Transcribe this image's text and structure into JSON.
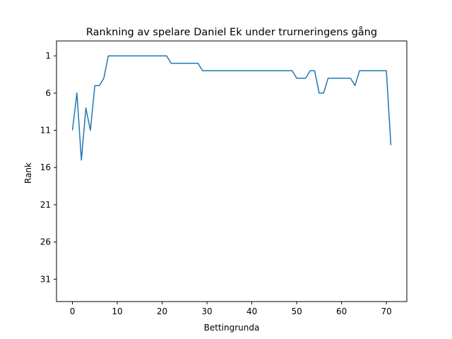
{
  "chart_data": {
    "type": "line",
    "title": "Rankning av spelare Daniel Ek under trurneringens gång",
    "xlabel": "Bettingrunda",
    "ylabel": "Rank",
    "xlim": [
      -3.55,
      74.55
    ],
    "ylim": [
      34,
      -1
    ],
    "y_inverted": true,
    "xticks": [
      0,
      10,
      20,
      30,
      40,
      50,
      60,
      70
    ],
    "yticks": [
      1,
      6,
      11,
      16,
      21,
      26,
      31
    ],
    "grid": false,
    "series": [
      {
        "color": "#1f77b4",
        "x": [
          0,
          1,
          2,
          3,
          4,
          5,
          6,
          7,
          8,
          9,
          10,
          11,
          12,
          13,
          14,
          15,
          16,
          17,
          18,
          19,
          20,
          21,
          22,
          23,
          24,
          25,
          26,
          27,
          28,
          29,
          30,
          31,
          32,
          33,
          34,
          35,
          36,
          37,
          38,
          39,
          40,
          41,
          42,
          43,
          44,
          45,
          46,
          47,
          48,
          49,
          50,
          51,
          52,
          53,
          54,
          55,
          56,
          57,
          58,
          59,
          60,
          61,
          62,
          63,
          64,
          65,
          66,
          67,
          68,
          69,
          70,
          71
        ],
        "y": [
          11,
          6,
          15,
          8,
          11,
          5,
          5,
          4,
          1,
          1,
          1,
          1,
          1,
          1,
          1,
          1,
          1,
          1,
          1,
          1,
          1,
          1,
          2,
          2,
          2,
          2,
          2,
          2,
          2,
          3,
          3,
          3,
          3,
          3,
          3,
          3,
          3,
          3,
          3,
          3,
          3,
          3,
          3,
          3,
          3,
          3,
          3,
          3,
          3,
          3,
          4,
          4,
          4,
          3,
          3,
          6,
          6,
          4,
          4,
          4,
          4,
          4,
          4,
          5,
          3,
          3,
          3,
          3,
          3,
          3,
          3,
          13
        ]
      }
    ]
  }
}
